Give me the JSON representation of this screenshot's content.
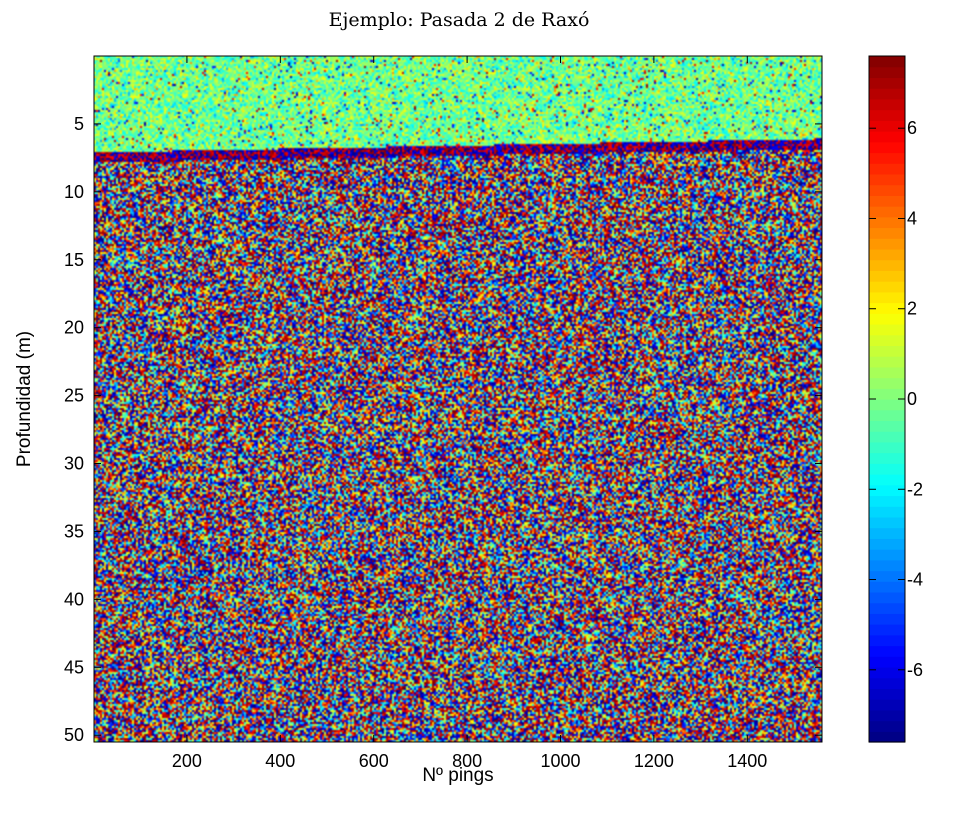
{
  "chart_data": {
    "type": "heatmap",
    "title": "Ejemplo: Pasada 2 de Raxó",
    "xlabel": "Nº pings",
    "ylabel": "Profundidad (m)",
    "xlim": [
      1,
      1560
    ],
    "ylim": [
      0,
      50.5
    ],
    "y_direction": "reversed",
    "x_ticks": [
      200,
      400,
      600,
      800,
      1000,
      1200,
      1400
    ],
    "y_ticks": [
      5,
      10,
      15,
      20,
      25,
      30,
      35,
      40,
      45,
      50
    ],
    "x_tick_labels": [
      "200",
      "400",
      "600",
      "800",
      "1000",
      "1200",
      "1400"
    ],
    "y_tick_labels": [
      "5",
      "10",
      "15",
      "20",
      "25",
      "30",
      "35",
      "40",
      "45",
      "50"
    ],
    "colorbar": {
      "colormap": "jet",
      "clim": [
        -7.6,
        7.6
      ],
      "ticks": [
        -6,
        -4,
        -2,
        0,
        2,
        4,
        6
      ],
      "tick_labels": [
        "-6",
        "-4",
        "-2",
        "0",
        "2",
        "4",
        "6"
      ],
      "placement": "right"
    },
    "regions": [
      {
        "depth_range": [
          0,
          7.3
        ],
        "description": "water column, low-amplitude noise (values mostly near -2 to 2)"
      },
      {
        "depth_range": [
          6.3,
          7.6
        ],
        "description": "seabed interface, strong signal (values near -7 and +7)"
      },
      {
        "depth_range": [
          7.6,
          50.5
        ],
        "description": "sub-bottom, broadband noise spanning full color range"
      }
    ],
    "seabed_depth": {
      "x": [
        1,
        1560
      ],
      "depth": [
        7.4,
        6.4
      ]
    },
    "grid": false
  }
}
